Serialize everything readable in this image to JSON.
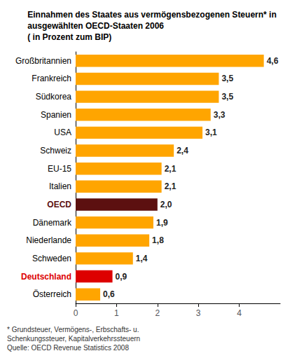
{
  "chart_data": {
    "type": "bar",
    "orientation": "horizontal",
    "title": "Einnahmen des Staates aus vermögensbezogenen Steuern* in\nausgewählten OECD-Staaten 2006\n( in Prozent zum BIP)",
    "categories": [
      "Großbritannien",
      "Frankreich",
      "Südkorea",
      "Spanien",
      "USA",
      "Schweiz",
      "EU-15",
      "Italien",
      "OECD",
      "Dänemark",
      "Niederlande",
      "Schweden",
      "Deutschland",
      "Österreich"
    ],
    "values": [
      4.6,
      3.5,
      3.5,
      3.3,
      3.1,
      2.4,
      2.1,
      2.1,
      2.0,
      1.9,
      1.8,
      1.4,
      0.9,
      0.6
    ],
    "value_labels": [
      "4,6",
      "3,5",
      "3,5",
      "3,3",
      "3,1",
      "2,4",
      "2,1",
      "2,1",
      "2,0",
      "1,9",
      "1,8",
      "1,4",
      "0,9",
      "0,6"
    ],
    "colors": [
      "#FFA500",
      "#FFA500",
      "#FFA500",
      "#FFA500",
      "#FFA500",
      "#FFA500",
      "#FFA500",
      "#FFA500",
      "#5C1010",
      "#FFA500",
      "#FFA500",
      "#FFA500",
      "#DD0000",
      "#FFA500"
    ],
    "xlim": [
      0,
      5
    ],
    "xticks": [
      0,
      1,
      2,
      3,
      4
    ],
    "data_labels": true,
    "grid": false,
    "annotations": [
      "* Grundsteuer, Vermögens-, Erbschafts- u.",
      "Schenkungssteuer, Kapitalverkehrssteuern",
      "Quelle: OECD Revenue Statistics 2008"
    ]
  }
}
